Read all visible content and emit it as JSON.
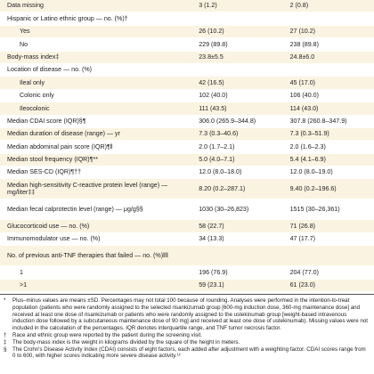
{
  "table": {
    "rows": [
      [
        "Data missing",
        "3 (1.2)",
        "2 (0.8)"
      ],
      {
        "label": "Hispanic or Latino ethnic group — no. (%)†",
        "items": [
          [
            "Yes",
            "26 (10.2)",
            "27 (10.2)"
          ],
          [
            "No",
            "229 (89.8)",
            "238 (89.8)"
          ]
        ]
      },
      [
        "Body-mass index‡",
        "23.8±5.5",
        "24.8±6.0"
      ],
      {
        "label": "Location of disease — no. (%)",
        "items": [
          [
            "Ileal only",
            "42 (16.5)",
            "45 (17.0)"
          ],
          [
            "Colonic only",
            "102 (40.0)",
            "106 (40.0)"
          ],
          [
            "Ileocolonic",
            "111 (43.5)",
            "114 (43.0)"
          ]
        ]
      },
      [
        "Median CDAI score (IQR)§¶",
        "306.0 (265.9–344.8)",
        "307.8 (260.8–347.9)"
      ],
      [
        "Median duration of disease (range) — yr",
        "7.3 (0.3–40.6)",
        "7.3 (0.3–51.9)"
      ],
      [
        "Median abdominal pain score (IQR)¶‖",
        "2.0 (1.7–2.1)",
        "2.0 (1.6–2.3)"
      ],
      [
        "Median stool frequency (IQR)¶**",
        "5.0 (4.0–7.1)",
        "5.4 (4.1–6.9)"
      ],
      [
        "Median SES-CD (IQR)¶††",
        "12.0 (8.0–18.0)",
        "12.0 (8.0–19.0)"
      ],
      [
        "Median high-sensitivity C-reactive protein level (range) — mg/liter‡‡",
        "8.20 (0.2–287.1)",
        "9.40 (0.2–196.6)"
      ],
      [
        "Median fecal calprotectin level (range) — μg/g§§",
        "1030 (30–26,823)",
        "1515 (30–26,361)"
      ],
      [
        "Glucocorticoid use — no. (%)",
        "58 (22.7)",
        "71 (26.8)"
      ],
      [
        "Immunomodulator use — no. (%)",
        "34 (13.3)",
        "47 (17.7)"
      ],
      {
        "label": "No. of previous anti-TNF therapies that failed — no. (%)‖‖",
        "items": [
          [
            "1",
            "196 (76.9)",
            "204 (77.0)"
          ],
          [
            ">1",
            "59 (23.1)",
            "61 (23.0)"
          ]
        ]
      }
    ]
  },
  "footnotes": [
    [
      "*",
      "Plus–minus values are means ±SD. Percentages may not total 100 because of rounding. Analyses were performed in the intention-to-treat population (patients who were randomly assigned to the selected risankizumab group [600-mg induction dose, 360-mg maintenance dose] and received at least one dose of risankizumab or patients who were randomly assigned to the ustekinumab group [weight-based intravenous induction dose followed by a subcutaneous maintenance dose of 90 mg] and received at least one dose of ustekinumab). Missing values were not included in the calculation of the percentages. IQR denotes interquartile range, and TNF tumor necrosis factor."
    ],
    [
      "†",
      "Race and ethnic group were reported by the patient during the screening visit."
    ],
    [
      "‡",
      "The body-mass index is the weight in kilograms divided by the square of the height in meters."
    ],
    [
      "§",
      "The Crohn's Disease Activity Index (CDAI) consists of eight factors, each added after adjustment with a weighting factor. CDAI scores range from 0 to 600, with higher scores indicating more severe disease activity.¹²"
    ]
  ]
}
